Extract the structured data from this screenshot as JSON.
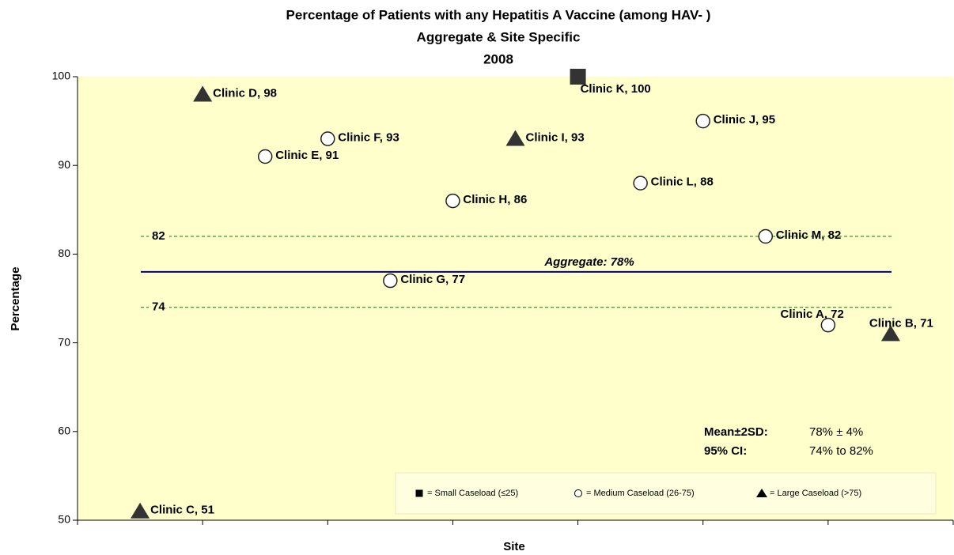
{
  "chart_data": {
    "type": "scatter",
    "title": [
      "Percentage of Patients with any Hepatitis A Vaccine (among HAV- )",
      "Aggregate & Site Specific",
      "2008"
    ],
    "y_label": "Percentage",
    "x_label": "Site",
    "ylim": [
      50,
      100
    ],
    "yticks": [
      50,
      60,
      70,
      80,
      90,
      100
    ],
    "categories": [
      "Clinic C, 51",
      "Clinic D, 98",
      "Clinic E, 91",
      "Clinic F, 93",
      "Clinic G, 77",
      "Clinic H, 86",
      "Clinic I, 93",
      "Clinic K, 100",
      "Clinic L, 88",
      "Clinic J, 95",
      "Clinic M, 82",
      "Clinic A, 72",
      "Clinic B, 71"
    ],
    "series": [
      {
        "name": "= Small Caseload (≤25)",
        "marker": "square",
        "color": "#333333",
        "values": [
          null,
          null,
          null,
          null,
          null,
          null,
          null,
          100,
          null,
          null,
          null,
          null,
          null
        ]
      },
      {
        "name": "= Medium Caseload (26-75)",
        "marker": "circle",
        "color": "#ffffff",
        "values": [
          null,
          null,
          91,
          93,
          77,
          86,
          null,
          null,
          88,
          95,
          82,
          72,
          null
        ]
      },
      {
        "name": "= Large Caseload (>75)",
        "marker": "triangle",
        "color": "#333333",
        "values": [
          51,
          98,
          null,
          null,
          null,
          null,
          93,
          null,
          null,
          null,
          null,
          null,
          71
        ]
      }
    ],
    "reference_lines": [
      {
        "value": 82,
        "label": "82",
        "style": "dashed",
        "color": "#008000"
      },
      {
        "value": 78,
        "label": "Aggregate: 78%",
        "style": "solid",
        "color": "#000080"
      },
      {
        "value": 74,
        "label": "74",
        "style": "dashed",
        "color": "#008000"
      }
    ],
    "annotations": [
      [
        "Mean±2SD:",
        "78% ± 4%"
      ],
      [
        "95% CI:",
        "74% to 82%"
      ]
    ],
    "background": "#ffffcc"
  }
}
